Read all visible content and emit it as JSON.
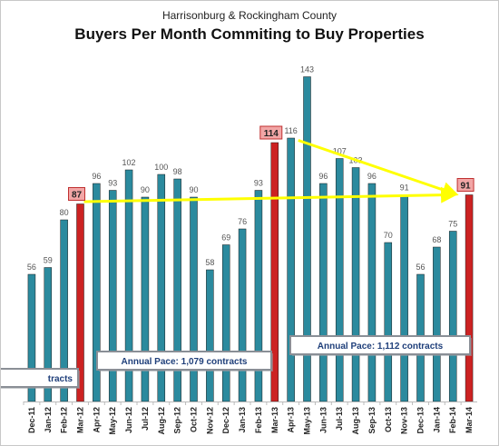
{
  "chart_data": {
    "type": "bar",
    "subtitle": "Harrisonburg & Rockingham County",
    "title": "Buyers Per Month Commiting to Buy Properties",
    "categories": [
      "Dec-11",
      "Jan-12",
      "Feb-12",
      "Mar-12",
      "Apr-12",
      "May-12",
      "Jun-12",
      "Jul-12",
      "Aug-12",
      "Sep-12",
      "Oct-12",
      "Nov-12",
      "Dec-12",
      "Jan-13",
      "Feb-13",
      "Mar-13",
      "Apr-13",
      "May-13",
      "Jun-13",
      "Jul-13",
      "Aug-13",
      "Sep-13",
      "Oct-13",
      "Nov-13",
      "Dec-13",
      "Jan-14",
      "Feb-14",
      "Mar-14"
    ],
    "values": [
      56,
      59,
      80,
      87,
      96,
      93,
      102,
      90,
      100,
      98,
      90,
      58,
      69,
      76,
      93,
      114,
      116,
      143,
      96,
      107,
      103,
      96,
      70,
      91,
      56,
      68,
      75,
      91
    ],
    "highlighted": [
      "Mar-12",
      "Mar-13",
      "Mar-14"
    ],
    "colors": {
      "bar": "#2b8a9e",
      "highlight": "#cc2222",
      "trend": "#ffff00",
      "callout_fill": "#f2a6a6"
    },
    "ylim": [
      0,
      150
    ],
    "grid": false,
    "callouts": [
      {
        "category": "Mar-12",
        "label": "87"
      },
      {
        "category": "Mar-13",
        "label": "114"
      },
      {
        "category": "Mar-14",
        "label": "91"
      }
    ],
    "annotations": [
      {
        "label": "Annual Pace: 1,079 contracts"
      },
      {
        "label": "Annual Pace: 1,112 contracts"
      },
      {
        "label": "tracts"
      }
    ]
  }
}
